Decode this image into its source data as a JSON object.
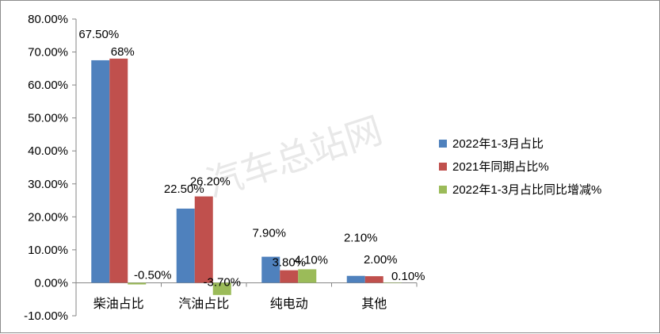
{
  "chart_data": {
    "type": "bar",
    "categories": [
      "柴油占比",
      "汽油占比",
      "纯电动",
      "其他"
    ],
    "series": [
      {
        "name": "2022年1-3月占比",
        "color": "#4f81bd",
        "values": [
          67.5,
          22.5,
          7.9,
          2.1
        ],
        "labels": [
          "67.50%",
          "22.50%",
          "7.90%",
          "2.10%"
        ]
      },
      {
        "name": "2021年同期占比%",
        "color": "#c0504d",
        "values": [
          68.0,
          26.2,
          3.8,
          2.0
        ],
        "labels": [
          "68%",
          "26.20%",
          "3.80%",
          "2.00%"
        ]
      },
      {
        "name": "2022年1-3月占比同比增减%",
        "color": "#9bbb59",
        "values": [
          -0.5,
          -3.7,
          4.1,
          0.1
        ],
        "labels": [
          "-0.50%",
          "-3.70%",
          "4.10%",
          "0.10%"
        ]
      }
    ],
    "ylim": [
      -10,
      80
    ],
    "yticks": [
      -10,
      0,
      10,
      20,
      30,
      40,
      50,
      60,
      70,
      80
    ],
    "ytick_labels": [
      "-10.00%",
      "0.00%",
      "10.00%",
      "20.00%",
      "30.00%",
      "40.00%",
      "50.00%",
      "60.00%",
      "70.00%",
      "80.00%"
    ],
    "grid": false,
    "legend_position": "right",
    "watermark": "汽车总站网"
  }
}
